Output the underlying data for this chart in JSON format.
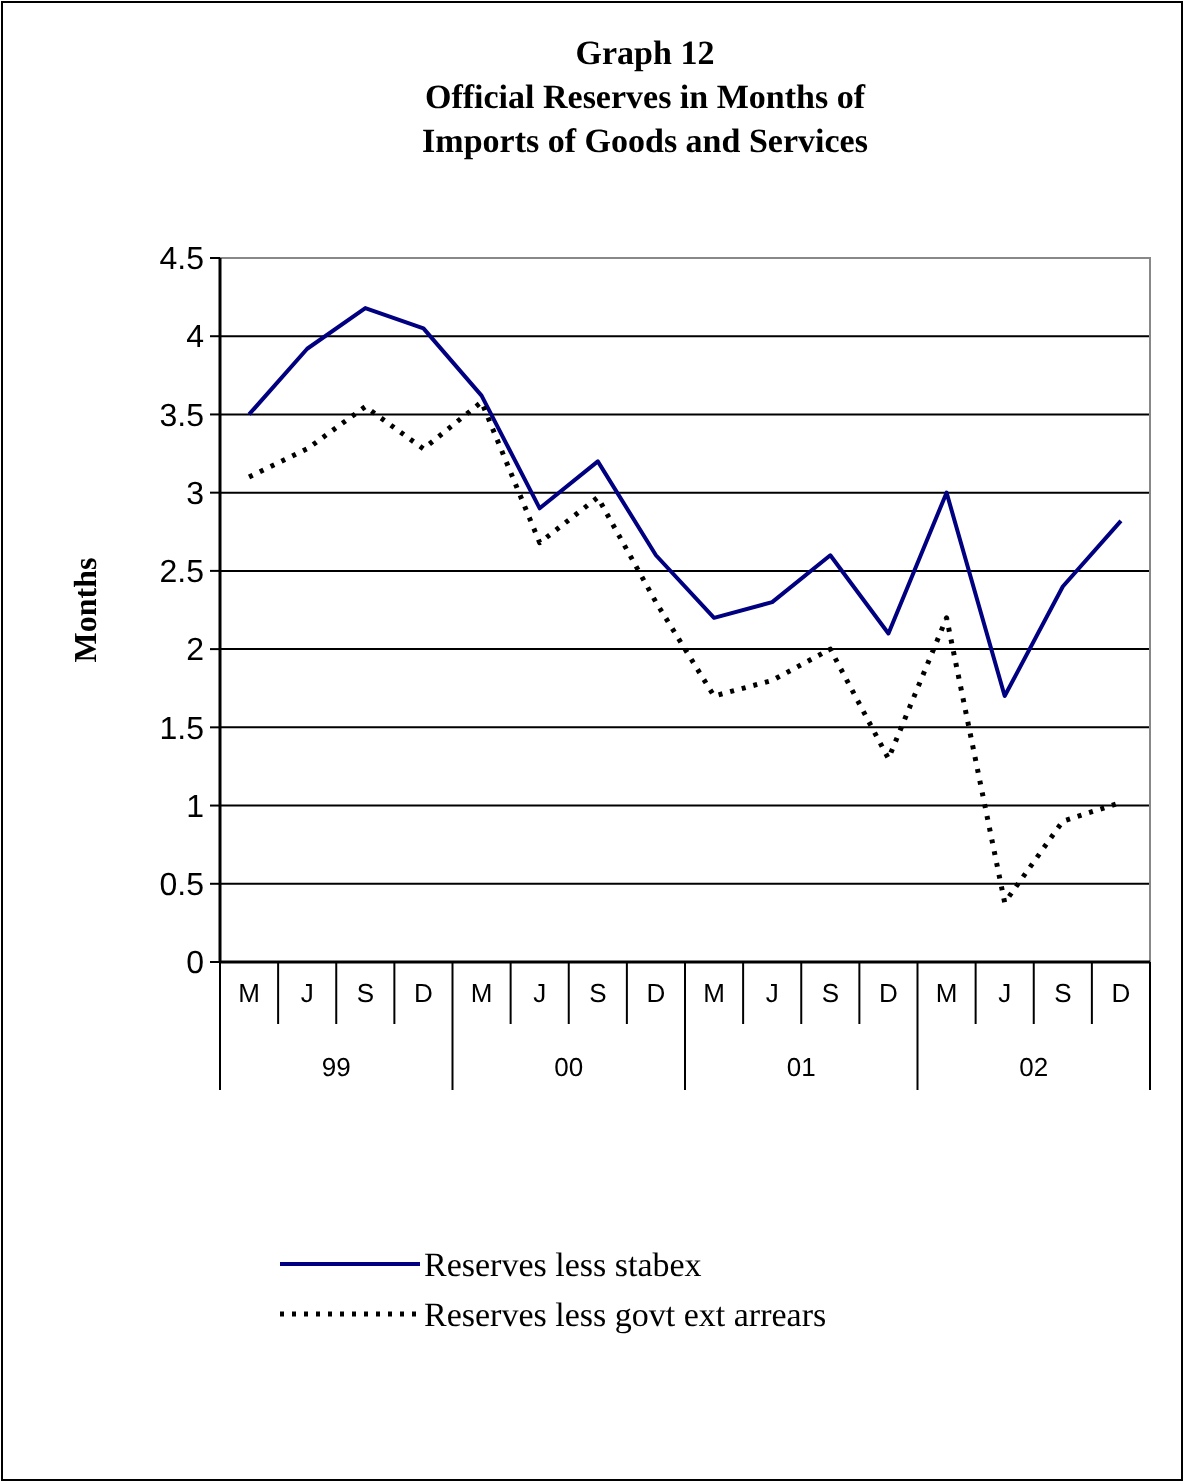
{
  "chart_data": {
    "type": "line",
    "title": "Graph 12\nOfficial Reserves in Months of\nImports of Goods and Services",
    "ylabel": "Months",
    "categories": [
      "M",
      "J",
      "S",
      "D",
      "M",
      "J",
      "S",
      "D",
      "M",
      "J",
      "S",
      "D",
      "M",
      "J",
      "S",
      "D"
    ],
    "annotations": [
      "99",
      "00",
      "01",
      "02"
    ],
    "series": [
      {
        "name": "Reserves less stabex",
        "color": "#000080",
        "line_style": "solid",
        "values": [
          3.5,
          3.92,
          4.18,
          4.05,
          3.62,
          2.9,
          3.2,
          2.6,
          2.2,
          2.3,
          2.6,
          2.1,
          3.0,
          1.7,
          2.4,
          2.82
        ]
      },
      {
        "name": "Reserves less govt ext arrears",
        "color": "#000000",
        "line_style": "dotted",
        "values": [
          3.1,
          3.28,
          3.55,
          3.28,
          3.58,
          2.68,
          2.97,
          2.3,
          1.7,
          1.8,
          2.0,
          1.3,
          2.2,
          0.38,
          0.9,
          1.02
        ]
      }
    ],
    "ylim": [
      0,
      4.5
    ],
    "yticks": [
      0,
      0.5,
      1,
      1.5,
      2,
      2.5,
      3,
      3.5,
      4,
      4.5
    ],
    "grid": "y",
    "legend": "bottom",
    "marker": "none"
  }
}
